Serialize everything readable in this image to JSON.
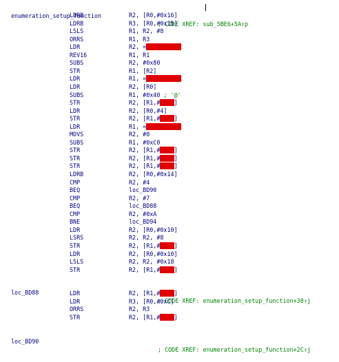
{
  "labels": {
    "enumeration_setup_function": {
      "name": "enumeration_setup_function",
      "comment": "; CODE XREF: sub_5BE6+5A↑p"
    },
    "loc_BD88": {
      "name": "loc_BD88",
      "comment": "; CODE XREF: enumeration_setup_function+30↑j"
    },
    "loc_BD90": {
      "name": "loc_BD90",
      "comment": "; CODE XREF: enumeration_setup_function+2C↑j"
    }
  },
  "block1": [
    {
      "mnemonic": "LDRB",
      "operands": "R2, [R0,#0x16]"
    },
    {
      "mnemonic": "LDRB",
      "operands": "R3, [R0,#0x15]"
    },
    {
      "mnemonic": "LSLS",
      "operands": "R1, R2, #8"
    },
    {
      "mnemonic": "ORRS",
      "operands": "R1, R3"
    },
    {
      "mnemonic": "LDR",
      "operands": "R2, =",
      "redacted": "0x400200C0"
    },
    {
      "mnemonic": "REV16",
      "operands": "R1, R1"
    },
    {
      "mnemonic": "SUBS",
      "operands": "R2, #0x80"
    },
    {
      "mnemonic": "STR",
      "operands": "R1, [R2]"
    },
    {
      "mnemonic": "LDR",
      "operands": "R1, =",
      "redacted": "0x400200C0"
    },
    {
      "mnemonic": "LDR",
      "operands": "R2, [R0]"
    },
    {
      "mnemonic": "SUBS",
      "operands": "R1, #0x40 ",
      "comment": "; '@'"
    },
    {
      "mnemonic": "STR",
      "operands": "R2, [R1,#",
      "redacted": "0x38",
      "suffix": "]"
    },
    {
      "mnemonic": "LDR",
      "operands": "R2, [R0,#4]"
    },
    {
      "mnemonic": "STR",
      "operands": "R2, [R1,#",
      "redacted": "0x3C",
      "suffix": "]"
    },
    {
      "mnemonic": "LDR",
      "operands": "R1, =",
      "redacted": "0x400200C0"
    },
    {
      "mnemonic": "MOVS",
      "operands": "R2, #0"
    },
    {
      "mnemonic": "SUBS",
      "operands": "R1, #0xC0"
    },
    {
      "mnemonic": "STR",
      "operands": "R2, [R1,#",
      "redacted": "0x34",
      "suffix": "]"
    },
    {
      "mnemonic": "STR",
      "operands": "R2, [R1,#",
      "redacted": "0x38",
      "suffix": "]"
    },
    {
      "mnemonic": "STR",
      "operands": "R2, [R1,#",
      "redacted": "0x3C",
      "suffix": "]"
    },
    {
      "mnemonic": "LDRB",
      "operands": "R2, [R0,#0x14]"
    },
    {
      "mnemonic": "CMP",
      "operands": "R2, #4"
    },
    {
      "mnemonic": "BEQ",
      "operands": "loc_BD90"
    },
    {
      "mnemonic": "CMP",
      "operands": "R2, #7"
    },
    {
      "mnemonic": "BEQ",
      "operands": "loc_BD88"
    },
    {
      "mnemonic": "CMP",
      "operands": "R2, #0xA"
    },
    {
      "mnemonic": "BNE",
      "operands": "loc_BD94"
    },
    {
      "mnemonic": "LDR",
      "operands": "R2, [R0,#0x10]"
    },
    {
      "mnemonic": "LSRS",
      "operands": "R2, R2, #8"
    },
    {
      "mnemonic": "STR",
      "operands": "R2, [R1,#",
      "redacted": "0x3C",
      "suffix": "]"
    },
    {
      "mnemonic": "LDR",
      "operands": "R2, [R0,#0x10]"
    },
    {
      "mnemonic": "LSLS",
      "operands": "R2, R2, #0x18"
    },
    {
      "mnemonic": "STR",
      "operands": "R2, [R1,#",
      "redacted": "0x38",
      "suffix": "]"
    }
  ],
  "block2": [
    {
      "mnemonic": "LDR",
      "operands": "R2, [R1,#",
      "redacted": "0x38",
      "suffix": "]"
    },
    {
      "mnemonic": "LDR",
      "operands": "R3, [R0,#0xC]"
    },
    {
      "mnemonic": "ORRS",
      "operands": "R2, R3"
    },
    {
      "mnemonic": "STR",
      "operands": "R2, [R1,#",
      "redacted": "0x38",
      "suffix": "]"
    }
  ]
}
